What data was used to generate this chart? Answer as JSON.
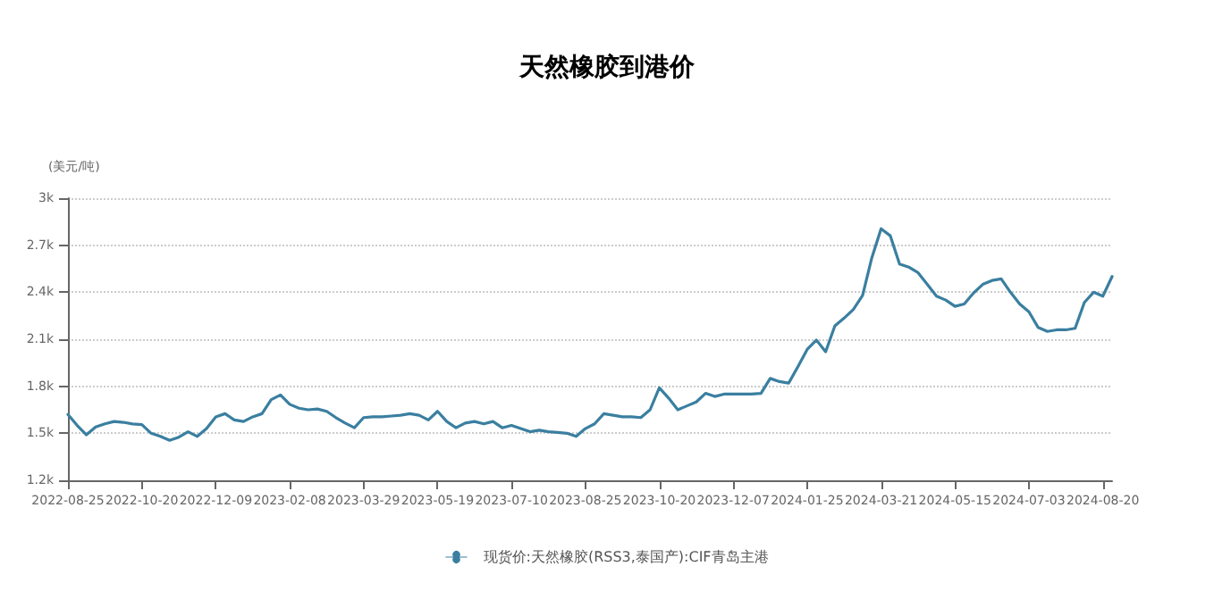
{
  "chart_data": {
    "type": "line",
    "title": "天然橡胶到港价",
    "ylabel": "(美元/吨)",
    "categories": [
      "2022-08-25",
      null,
      null,
      null,
      null,
      null,
      null,
      null,
      "2022-10-20",
      null,
      null,
      null,
      null,
      null,
      null,
      null,
      "2022-12-09",
      null,
      null,
      null,
      null,
      null,
      null,
      null,
      "2023-02-08",
      null,
      null,
      null,
      null,
      null,
      null,
      null,
      "2023-03-29",
      null,
      null,
      null,
      null,
      null,
      null,
      null,
      "2023-05-19",
      null,
      null,
      null,
      null,
      null,
      null,
      null,
      "2023-07-10",
      null,
      null,
      null,
      null,
      null,
      null,
      null,
      "2023-08-25",
      null,
      null,
      null,
      null,
      null,
      null,
      null,
      "2023-10-20",
      null,
      null,
      null,
      null,
      null,
      null,
      null,
      "2023-12-07",
      null,
      null,
      null,
      null,
      null,
      null,
      null,
      "2024-01-25",
      null,
      null,
      null,
      null,
      null,
      null,
      null,
      "2024-03-21",
      null,
      null,
      null,
      null,
      null,
      null,
      null,
      "2024-05-15",
      null,
      null,
      null,
      null,
      null,
      null,
      null,
      "2024-07-03",
      null,
      null,
      null,
      null,
      null,
      null,
      null,
      "2024-08-20",
      null
    ],
    "series": [
      {
        "name": "现货价:天然橡胶(RSS3,泰国产):CIF青岛主港",
        "color": "#3a7fa0",
        "values": [
          1620,
          1550,
          1490,
          1540,
          1560,
          1575,
          1570,
          1560,
          1555,
          1500,
          1480,
          1455,
          1475,
          1510,
          1480,
          1530,
          1605,
          1625,
          1585,
          1575,
          1605,
          1625,
          1715,
          1745,
          1685,
          1660,
          1650,
          1655,
          1640,
          1600,
          1565,
          1535,
          1600,
          1605,
          1605,
          1610,
          1615,
          1625,
          1615,
          1585,
          1640,
          1575,
          1535,
          1565,
          1575,
          1560,
          1575,
          1535,
          1550,
          1530,
          1510,
          1520,
          1510,
          1505,
          1500,
          1480,
          1530,
          1560,
          1625,
          1615,
          1605,
          1605,
          1600,
          1650,
          1790,
          1725,
          1650,
          1675,
          1700,
          1755,
          1735,
          1750,
          1750,
          1750,
          1750,
          1755,
          1850,
          1830,
          1820,
          1925,
          2035,
          2095,
          2020,
          2185,
          2235,
          2290,
          2380,
          2620,
          2805,
          2760,
          2580,
          2560,
          2525,
          2450,
          2375,
          2350,
          2310,
          2325,
          2395,
          2450,
          2475,
          2485,
          2400,
          2325,
          2275,
          2175,
          2150,
          2160,
          2160,
          2170,
          2335,
          2400,
          2375,
          2500
        ]
      }
    ],
    "ylim": [
      1200,
      3000
    ],
    "yticks": [
      {
        "value": 1200,
        "label": "1.2k"
      },
      {
        "value": 1500,
        "label": "1.5k"
      },
      {
        "value": 1800,
        "label": "1.8k"
      },
      {
        "value": 2100,
        "label": "2.1k"
      },
      {
        "value": 2400,
        "label": "2.4k"
      },
      {
        "value": 2700,
        "label": "2.7k"
      },
      {
        "value": 3000,
        "label": "3k"
      }
    ],
    "grid": "y",
    "legend": "bottom",
    "marker": "none",
    "line_style": "solid"
  }
}
